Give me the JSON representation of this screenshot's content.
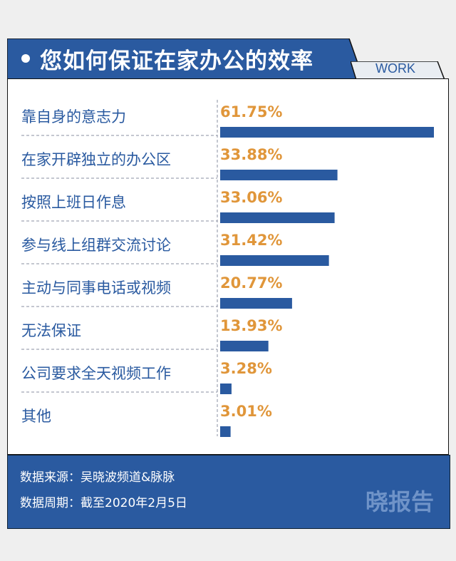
{
  "header": {
    "title": "您如何保证在家办公的效率",
    "tag": "WORK"
  },
  "chart_data": {
    "type": "bar",
    "orientation": "horizontal",
    "categories": [
      "靠自身的意志力",
      "在家开辟独立的办公区",
      "按照上班日作息",
      "参与线上组群交流讨论",
      "主动与同事电话或视频",
      "无法保证",
      "公司要求全天视频工作",
      "其他"
    ],
    "values": [
      61.75,
      33.88,
      33.06,
      31.42,
      20.77,
      13.93,
      3.28,
      3.01
    ],
    "value_labels": [
      "61.75%",
      "33.88%",
      "33.06%",
      "31.42%",
      "20.77%",
      "13.93%",
      "3.28%",
      "3.01%"
    ],
    "bar_color": "#2a5aa0",
    "label_color": "#e0963a",
    "category_color": "#2a5aa0"
  },
  "footer": {
    "source": "数据来源：吴晓波频道&脉脉",
    "period": "数据周期：截至2020年2月5日",
    "brand": "晓报告"
  }
}
